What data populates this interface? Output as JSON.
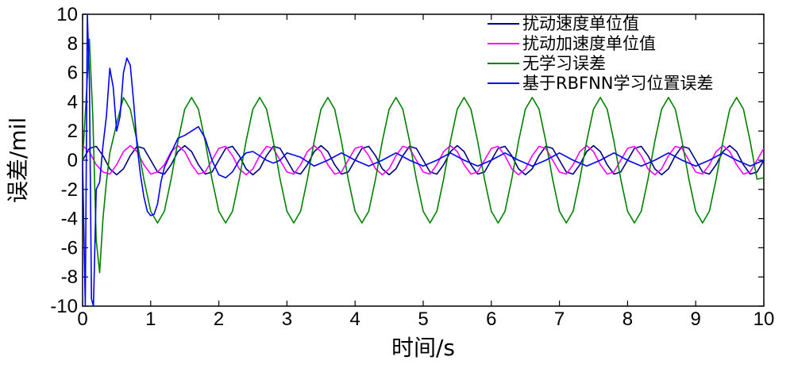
{
  "chart_data": {
    "type": "line",
    "title": "",
    "xlabel": "时间/s",
    "ylabel": "误差/mil",
    "xlim": [
      0,
      10
    ],
    "ylim": [
      -10,
      10
    ],
    "xticks": [
      0,
      1,
      2,
      3,
      4,
      5,
      6,
      7,
      8,
      9,
      10
    ],
    "yticks": [
      -10,
      -8,
      -6,
      -4,
      -2,
      0,
      2,
      4,
      6,
      8,
      10
    ],
    "grid": false,
    "legend_position": "top-right",
    "series": [
      {
        "name": "扰动速度单位值",
        "color": "#000080",
        "x": [
          0.0,
          0.1,
          0.2,
          0.3,
          0.4,
          0.5,
          0.6,
          0.7,
          0.8,
          0.9,
          1.0,
          1.1,
          1.2,
          1.3,
          1.4,
          1.5,
          1.6,
          1.7,
          1.8,
          1.9,
          2.0,
          2.1,
          2.2,
          2.3,
          2.4,
          2.5,
          2.6,
          2.7,
          2.8,
          2.9,
          3.0,
          3.1,
          3.2,
          3.3,
          3.4,
          3.5,
          3.6,
          3.7,
          3.8,
          3.9,
          4.0,
          4.1,
          4.2,
          4.3,
          4.4,
          4.5,
          4.6,
          4.7,
          4.8,
          4.9,
          5.0,
          5.1,
          5.2,
          5.3,
          5.4,
          5.5,
          5.6,
          5.7,
          5.8,
          5.9,
          6.0,
          6.1,
          6.2,
          6.3,
          6.4,
          6.5,
          6.6,
          6.7,
          6.8,
          6.9,
          7.0,
          7.1,
          7.2,
          7.3,
          7.4,
          7.5,
          7.6,
          7.7,
          7.8,
          7.9,
          8.0,
          8.1,
          8.2,
          8.3,
          8.4,
          8.5,
          8.6,
          8.7,
          8.8,
          8.9,
          9.0,
          9.1,
          9.2,
          9.3,
          9.4,
          9.5,
          9.6,
          9.7,
          9.8,
          9.9,
          10.0
        ],
        "y": [
          0.0,
          0.81,
          0.95,
          0.31,
          -0.59,
          -1.0,
          -0.59,
          0.31,
          0.95,
          0.81,
          0.0,
          -0.81,
          -0.95,
          -0.31,
          0.59,
          1.0,
          0.59,
          -0.31,
          -0.95,
          -0.81,
          0.0,
          0.81,
          0.95,
          0.31,
          -0.59,
          -1.0,
          -0.59,
          0.31,
          0.95,
          0.81,
          0.0,
          -0.81,
          -0.95,
          -0.31,
          0.59,
          1.0,
          0.59,
          -0.31,
          -0.95,
          -0.81,
          0.0,
          0.81,
          0.95,
          0.31,
          -0.59,
          -1.0,
          -0.59,
          0.31,
          0.95,
          0.81,
          0.0,
          -0.81,
          -0.95,
          -0.31,
          0.59,
          1.0,
          0.59,
          -0.31,
          -0.95,
          -0.81,
          0.0,
          0.81,
          0.95,
          0.31,
          -0.59,
          -1.0,
          -0.59,
          0.31,
          0.95,
          0.81,
          0.0,
          -0.81,
          -0.95,
          -0.31,
          0.59,
          1.0,
          0.59,
          -0.31,
          -0.95,
          -0.81,
          0.0,
          0.81,
          0.95,
          0.31,
          -0.59,
          -1.0,
          -0.59,
          0.31,
          0.95,
          0.81,
          0.0,
          -0.81,
          -0.95,
          -0.31,
          0.59,
          1.0,
          0.59,
          -0.31,
          -0.95,
          -0.81,
          0.0
        ]
      },
      {
        "name": "扰动加速度单位值",
        "color": "#ff00ff",
        "x": [
          0.0,
          0.1,
          0.2,
          0.3,
          0.4,
          0.5,
          0.6,
          0.7,
          0.8,
          0.9,
          1.0,
          1.1,
          1.2,
          1.3,
          1.4,
          1.5,
          1.6,
          1.7,
          1.8,
          1.9,
          2.0,
          2.1,
          2.2,
          2.3,
          2.4,
          2.5,
          2.6,
          2.7,
          2.8,
          2.9,
          3.0,
          3.1,
          3.2,
          3.3,
          3.4,
          3.5,
          3.6,
          3.7,
          3.8,
          3.9,
          4.0,
          4.1,
          4.2,
          4.3,
          4.4,
          4.5,
          4.6,
          4.7,
          4.8,
          4.9,
          5.0,
          5.1,
          5.2,
          5.3,
          5.4,
          5.5,
          5.6,
          5.7,
          5.8,
          5.9,
          6.0,
          6.1,
          6.2,
          6.3,
          6.4,
          6.5,
          6.6,
          6.7,
          6.8,
          6.9,
          7.0,
          7.1,
          7.2,
          7.3,
          7.4,
          7.5,
          7.6,
          7.7,
          7.8,
          7.9,
          8.0,
          8.1,
          8.2,
          8.3,
          8.4,
          8.5,
          8.6,
          8.7,
          8.8,
          8.9,
          9.0,
          9.1,
          9.2,
          9.3,
          9.4,
          9.5,
          9.6,
          9.7,
          9.8,
          9.9,
          10.0
        ],
        "y": [
          1.0,
          0.59,
          -0.31,
          -0.81,
          -0.95,
          -0.31,
          0.59,
          1.0,
          0.59,
          -0.31,
          -0.95,
          -0.81,
          -0.31,
          0.59,
          1.0,
          0.59,
          -0.31,
          -0.95,
          -0.81,
          0.0,
          0.81,
          0.95,
          0.31,
          -0.59,
          -1.0,
          -0.59,
          0.31,
          0.95,
          0.81,
          0.0,
          -0.81,
          -0.95,
          -0.31,
          0.59,
          1.0,
          0.59,
          -0.31,
          -0.95,
          -0.81,
          0.0,
          0.81,
          0.95,
          0.31,
          -0.59,
          -1.0,
          -0.59,
          0.31,
          0.95,
          0.81,
          0.0,
          -0.81,
          -0.95,
          -0.31,
          0.59,
          1.0,
          0.59,
          -0.31,
          -0.95,
          -0.81,
          0.0,
          0.81,
          0.95,
          0.31,
          -0.59,
          -1.0,
          -0.59,
          0.31,
          0.95,
          0.81,
          0.0,
          -0.81,
          -0.95,
          -0.31,
          0.59,
          1.0,
          0.59,
          -0.31,
          -0.95,
          -0.81,
          0.0,
          0.81,
          0.95,
          0.31,
          -0.59,
          -1.0,
          -0.59,
          0.31,
          0.95,
          0.81,
          0.0,
          -0.81,
          -0.95,
          -0.31,
          0.59,
          1.0,
          0.59,
          -0.31,
          -0.95,
          -0.81,
          0.0,
          0.81
        ]
      },
      {
        "name": "无学习误差",
        "color": "#008000",
        "x": [
          0.0,
          0.05,
          0.1,
          0.15,
          0.2,
          0.25,
          0.3,
          0.35,
          0.4,
          0.45,
          0.5,
          0.6,
          0.7,
          0.8,
          0.9,
          1.0,
          1.1,
          1.2,
          1.3,
          1.4,
          1.5,
          1.6,
          1.7,
          1.8,
          1.9,
          2.0,
          2.1,
          2.2,
          2.3,
          2.4,
          2.5,
          2.6,
          2.7,
          2.8,
          2.9,
          3.0,
          3.1,
          3.2,
          3.3,
          3.4,
          3.5,
          3.6,
          3.7,
          3.8,
          3.9,
          4.0,
          4.1,
          4.2,
          4.3,
          4.4,
          4.5,
          4.6,
          4.7,
          4.8,
          4.9,
          5.0,
          5.1,
          5.2,
          5.3,
          5.4,
          5.5,
          5.6,
          5.7,
          5.8,
          5.9,
          6.0,
          6.1,
          6.2,
          6.3,
          6.4,
          6.5,
          6.6,
          6.7,
          6.8,
          6.9,
          7.0,
          7.1,
          7.2,
          7.3,
          7.4,
          7.5,
          7.6,
          7.7,
          7.8,
          7.9,
          8.0,
          8.1,
          8.2,
          8.3,
          8.4,
          8.5,
          8.6,
          8.7,
          8.8,
          8.9,
          9.0,
          9.1,
          9.2,
          9.3,
          9.4,
          9.5,
          9.6,
          9.7,
          9.8,
          9.9,
          10.0
        ],
        "y": [
          0.0,
          4.0,
          8.3,
          3.0,
          -5.5,
          -7.7,
          -4.0,
          -1.5,
          0.5,
          1.5,
          2.5,
          4.3,
          3.5,
          1.3,
          -1.3,
          -3.5,
          -4.3,
          -3.5,
          -1.3,
          1.3,
          3.5,
          4.3,
          3.5,
          1.3,
          -1.3,
          -3.5,
          -4.3,
          -3.5,
          -1.3,
          1.3,
          3.5,
          4.3,
          3.5,
          1.3,
          -1.3,
          -3.5,
          -4.3,
          -3.5,
          -1.3,
          1.3,
          3.5,
          4.3,
          3.5,
          1.3,
          -1.3,
          -3.5,
          -4.3,
          -3.5,
          -1.3,
          1.3,
          3.5,
          4.3,
          3.5,
          1.3,
          -1.3,
          -3.5,
          -4.3,
          -3.5,
          -1.3,
          1.3,
          3.5,
          4.3,
          3.5,
          1.3,
          -1.3,
          -3.5,
          -4.3,
          -3.5,
          -1.3,
          1.3,
          3.5,
          4.3,
          3.5,
          1.3,
          -1.3,
          -3.5,
          -4.3,
          -3.5,
          -1.3,
          1.3,
          3.5,
          4.3,
          3.5,
          1.3,
          -1.3,
          -3.5,
          -4.3,
          -3.5,
          -1.3,
          1.3,
          3.5,
          4.3,
          3.5,
          1.3,
          -1.3,
          -3.5,
          -4.3,
          -3.5,
          -1.3,
          1.3,
          3.5,
          4.3,
          3.5,
          1.3,
          -1.3,
          -1.2
        ]
      },
      {
        "name": "基于RBFNN学习位置误差",
        "color": "#0000ff",
        "x": [
          0.0,
          0.04,
          0.07,
          0.1,
          0.13,
          0.16,
          0.2,
          0.25,
          0.3,
          0.35,
          0.4,
          0.45,
          0.5,
          0.55,
          0.6,
          0.65,
          0.7,
          0.75,
          0.8,
          0.85,
          0.9,
          0.95,
          1.0,
          1.05,
          1.1,
          1.15,
          1.2,
          1.3,
          1.4,
          1.5,
          1.6,
          1.7,
          1.8,
          1.9,
          2.0,
          2.1,
          2.2,
          2.3,
          2.4,
          2.5,
          2.6,
          2.7,
          2.8,
          2.9,
          3.0,
          3.2,
          3.4,
          3.6,
          3.8,
          4.0,
          4.2,
          4.4,
          4.6,
          4.8,
          5.0,
          5.2,
          5.4,
          5.6,
          5.8,
          6.0,
          6.2,
          6.4,
          6.6,
          6.8,
          7.0,
          7.2,
          7.4,
          7.6,
          7.8,
          8.0,
          8.2,
          8.4,
          8.6,
          8.8,
          9.0,
          9.2,
          9.4,
          9.6,
          9.8,
          10.0
        ],
        "y": [
          0.0,
          -10.0,
          10.0,
          5.5,
          -9.5,
          -10.0,
          -2.0,
          -1.5,
          1.0,
          3.0,
          6.3,
          5.0,
          2.0,
          3.0,
          6.0,
          7.0,
          6.5,
          4.0,
          1.0,
          -1.0,
          -2.5,
          -3.5,
          -3.8,
          -3.7,
          -3.0,
          -1.5,
          -0.5,
          0.5,
          1.5,
          1.7,
          2.0,
          2.3,
          1.5,
          0.0,
          -1.0,
          -1.2,
          -0.8,
          0.0,
          0.5,
          0.6,
          0.3,
          0.0,
          -0.2,
          0.0,
          0.5,
          0.2,
          -0.4,
          0.0,
          0.5,
          0.0,
          -0.4,
          0.0,
          0.5,
          0.0,
          -0.4,
          0.0,
          0.5,
          0.0,
          -0.4,
          0.0,
          0.5,
          0.0,
          -0.4,
          0.0,
          0.5,
          0.0,
          -0.4,
          0.0,
          0.5,
          0.0,
          -0.4,
          0.0,
          0.5,
          0.0,
          -0.4,
          0.0,
          0.5,
          0.0,
          -0.4,
          0.0
        ]
      }
    ]
  }
}
